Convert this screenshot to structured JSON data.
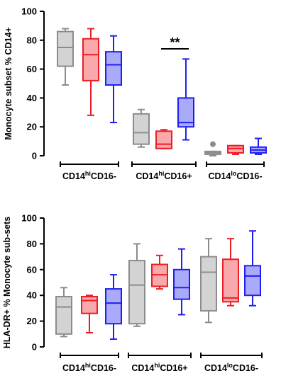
{
  "series_colors": {
    "gray": "#8c8c8c",
    "red": "#ee1c24",
    "blue": "#1f1ff2"
  },
  "chart_data": [
    {
      "type": "box",
      "ylabel": "Monocyte subset % CD14+",
      "ylim": [
        0,
        100
      ],
      "yticks": [
        0,
        20,
        40,
        60,
        80,
        100
      ],
      "grid": false,
      "categories": [
        {
          "main": "CD14",
          "sup": "hi",
          "rest": "CD16-"
        },
        {
          "main": "CD14",
          "sup": "hi",
          "rest": "CD16+"
        },
        {
          "main": "CD14",
          "sup": "lo",
          "rest": "CD16-"
        }
      ],
      "boxes": [
        [
          {
            "color": "gray",
            "min": 49,
            "q1": 62,
            "median": 75,
            "q3": 86,
            "max": 88
          },
          {
            "color": "red",
            "min": 28,
            "q1": 52,
            "median": 70,
            "q3": 81,
            "max": 88
          },
          {
            "color": "blue",
            "min": 23,
            "q1": 49,
            "median": 63,
            "q3": 72,
            "max": 83
          }
        ],
        [
          {
            "color": "gray",
            "min": 6,
            "q1": 8,
            "median": 16,
            "q3": 29,
            "max": 32
          },
          {
            "color": "red",
            "min": 5,
            "q1": 5,
            "median": 8,
            "q3": 17,
            "max": 18
          },
          {
            "color": "blue",
            "min": 11,
            "q1": 20,
            "median": 23,
            "q3": 40,
            "max": 67
          }
        ],
        [
          {
            "color": "gray",
            "min": 0,
            "q1": 1,
            "median": 2,
            "q3": 3,
            "max": 3,
            "outliers": [
              8
            ]
          },
          {
            "color": "red",
            "min": 1,
            "q1": 2,
            "median": 5,
            "q3": 7,
            "max": 7
          },
          {
            "color": "blue",
            "min": 1,
            "q1": 2,
            "median": 4,
            "q3": 6,
            "max": 12
          }
        ]
      ],
      "annotations": [
        {
          "text": "**",
          "from": [
            1,
            1
          ],
          "to": [
            1,
            2
          ],
          "y": 74
        }
      ]
    },
    {
      "type": "box",
      "ylabel": "HLA-DR+ % Monocyte sub-sets",
      "ylim": [
        0,
        100
      ],
      "yticks": [
        0,
        20,
        40,
        60,
        80,
        100
      ],
      "grid": false,
      "categories": [
        {
          "main": "CD14",
          "sup": "hi",
          "rest": "CD16-"
        },
        {
          "main": "CD14",
          "sup": "hi",
          "rest": "CD16+"
        },
        {
          "main": "CD14",
          "sup": "lo",
          "rest": "CD16-"
        }
      ],
      "boxes": [
        [
          {
            "color": "gray",
            "min": 8,
            "q1": 10,
            "median": 31,
            "q3": 39,
            "max": 46
          },
          {
            "color": "red",
            "min": 11,
            "q1": 26,
            "median": 36,
            "q3": 39,
            "max": 40
          },
          {
            "color": "blue",
            "min": 6,
            "q1": 18,
            "median": 34,
            "q3": 45,
            "max": 56
          }
        ],
        [
          {
            "color": "gray",
            "min": 16,
            "q1": 18,
            "median": 48,
            "q3": 67,
            "max": 80
          },
          {
            "color": "red",
            "min": 45,
            "q1": 47,
            "median": 56,
            "q3": 64,
            "max": 71
          },
          {
            "color": "blue",
            "min": 25,
            "q1": 37,
            "median": 46,
            "q3": 60,
            "max": 76
          }
        ],
        [
          {
            "color": "gray",
            "min": 19,
            "q1": 28,
            "median": 58,
            "q3": 70,
            "max": 84
          },
          {
            "color": "red",
            "min": 32,
            "q1": 35,
            "median": 38,
            "q3": 68,
            "max": 84
          },
          {
            "color": "blue",
            "min": 32,
            "q1": 40,
            "median": 55,
            "q3": 63,
            "max": 90
          }
        ]
      ]
    }
  ]
}
